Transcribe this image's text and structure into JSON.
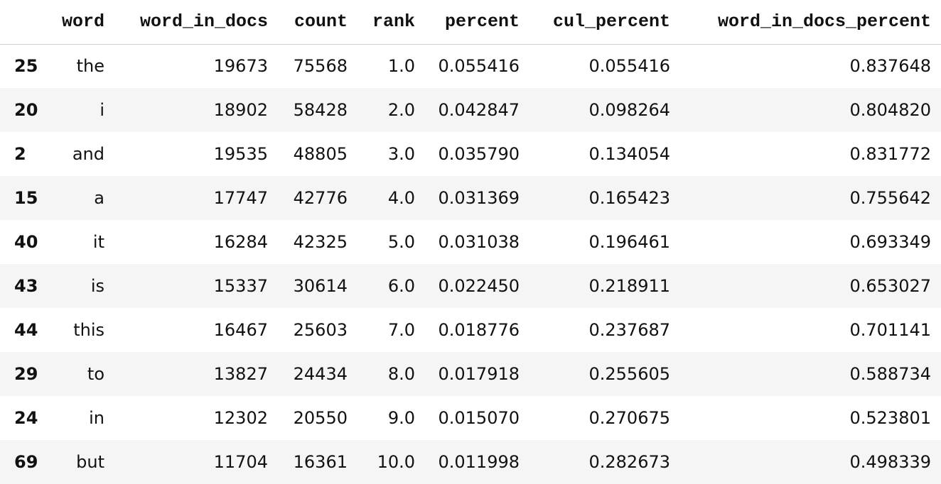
{
  "table": {
    "columns": [
      "word",
      "word_in_docs",
      "count",
      "rank",
      "percent",
      "cul_percent",
      "word_in_docs_percent"
    ],
    "index": [
      "25",
      "20",
      "2",
      "15",
      "40",
      "43",
      "44",
      "29",
      "24",
      "69"
    ],
    "rows": [
      [
        "the",
        "19673",
        "75568",
        "1.0",
        "0.055416",
        "0.055416",
        "0.837648"
      ],
      [
        "i",
        "18902",
        "58428",
        "2.0",
        "0.042847",
        "0.098264",
        "0.804820"
      ],
      [
        "and",
        "19535",
        "48805",
        "3.0",
        "0.035790",
        "0.134054",
        "0.831772"
      ],
      [
        "a",
        "17747",
        "42776",
        "4.0",
        "0.031369",
        "0.165423",
        "0.755642"
      ],
      [
        "it",
        "16284",
        "42325",
        "5.0",
        "0.031038",
        "0.196461",
        "0.693349"
      ],
      [
        "is",
        "15337",
        "30614",
        "6.0",
        "0.022450",
        "0.218911",
        "0.653027"
      ],
      [
        "this",
        "16467",
        "25603",
        "7.0",
        "0.018776",
        "0.237687",
        "0.701141"
      ],
      [
        "to",
        "13827",
        "24434",
        "8.0",
        "0.017918",
        "0.255605",
        "0.588734"
      ],
      [
        "in",
        "12302",
        "20550",
        "9.0",
        "0.015070",
        "0.270675",
        "0.523801"
      ],
      [
        "but",
        "11704",
        "16361",
        "10.0",
        "0.011998",
        "0.282673",
        "0.498339"
      ]
    ]
  }
}
